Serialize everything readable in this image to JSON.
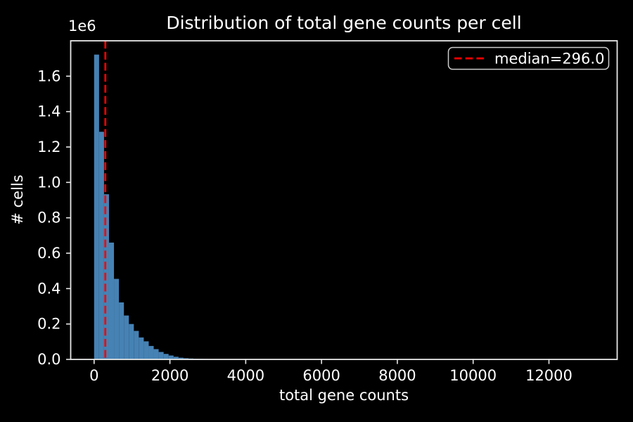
{
  "chart_data": {
    "type": "bar",
    "subtype": "histogram",
    "title": "Distribution of total gene counts per cell",
    "xlabel": "total gene counts",
    "ylabel": "# cells",
    "offset_text": "1e6",
    "legend_label": "median=296.0",
    "legend_position": "upper right",
    "median": 296.0,
    "grid": false,
    "xlim": [
      -618,
      13800
    ],
    "ylim": [
      0,
      1800000
    ],
    "bin_start": 0,
    "bin_width": 131,
    "x_ticks": [
      {
        "label": "0",
        "value": 0
      },
      {
        "label": "2000",
        "value": 2000
      },
      {
        "label": "4000",
        "value": 4000
      },
      {
        "label": "6000",
        "value": 6000
      },
      {
        "label": "8000",
        "value": 8000
      },
      {
        "label": "10000",
        "value": 10000
      },
      {
        "label": "12000",
        "value": 12000
      }
    ],
    "y_ticks": [
      {
        "label": "0.0",
        "value": 0
      },
      {
        "label": "0.2",
        "value": 200000
      },
      {
        "label": "0.4",
        "value": 400000
      },
      {
        "label": "0.6",
        "value": 600000
      },
      {
        "label": "0.8",
        "value": 800000
      },
      {
        "label": "1.0",
        "value": 1000000
      },
      {
        "label": "1.2",
        "value": 1200000
      },
      {
        "label": "1.4",
        "value": 1400000
      },
      {
        "label": "1.6",
        "value": 1600000
      }
    ],
    "values": [
      1722000,
      1286000,
      933000,
      660000,
      455000,
      322000,
      248000,
      200000,
      161000,
      124000,
      102000,
      76000,
      58000,
      42000,
      31000,
      22000,
      15000,
      9800,
      6800,
      5000,
      3800,
      3000,
      2400,
      2000,
      1700,
      1400,
      1200,
      1000,
      850,
      700,
      600,
      500,
      420,
      350,
      300,
      250,
      210,
      180,
      150,
      130,
      110,
      95,
      80,
      70,
      60,
      50,
      45,
      40,
      35,
      30,
      26,
      22,
      19,
      16,
      14,
      12,
      10,
      9,
      8,
      7,
      6,
      6,
      5,
      5,
      4,
      4,
      3,
      3,
      3,
      2,
      2,
      2,
      2,
      2,
      1,
      1,
      1,
      1,
      1,
      1,
      1,
      1,
      1,
      1,
      1,
      1,
      1,
      1,
      1,
      1,
      1,
      1,
      1,
      1,
      1,
      1,
      1,
      1,
      1,
      2
    ],
    "colors": {
      "bar": "#4682b4",
      "median_line": "#ff0000",
      "background": "#000000",
      "text": "#ffffff",
      "axis": "#e8e8e8",
      "legend_border": "#cccccc"
    }
  }
}
